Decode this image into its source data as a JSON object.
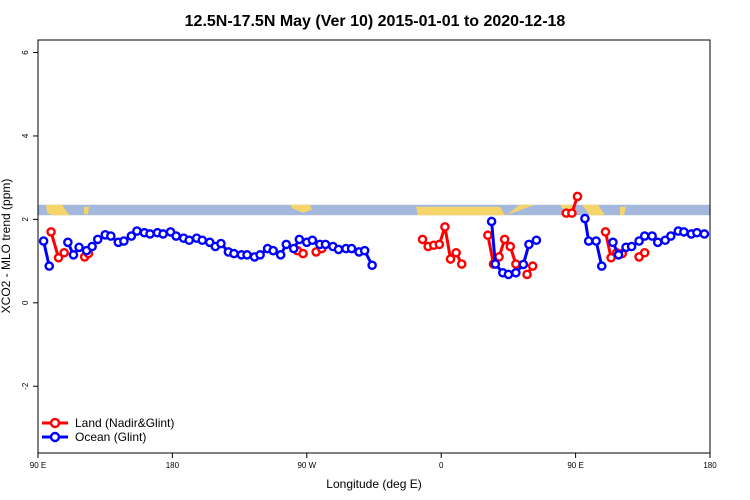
{
  "chart_data": {
    "type": "line",
    "title": "12.5N-17.5N May (Ver 10)   2015-01-01 to 2020-12-18",
    "xlabel": "Longitude (deg E)",
    "ylabel": "XCO2 - MLO trend (ppm)",
    "xlim": [
      90,
      450
    ],
    "ylim": [
      -3.6,
      6.3
    ],
    "x_ticks": [
      {
        "value": 90,
        "label": "90 E"
      },
      {
        "value": 162,
        "label": "180"
      },
      {
        "value": 234,
        "label": "90 W"
      },
      {
        "value": 306,
        "label": "0"
      },
      {
        "value": 378,
        "label": "90 E"
      },
      {
        "value": 450,
        "label": "180"
      }
    ],
    "y_ticks": [
      {
        "value": -2,
        "label": "-2"
      },
      {
        "value": 0,
        "label": "0"
      },
      {
        "value": 2,
        "label": "2"
      },
      {
        "value": 4,
        "label": "4"
      },
      {
        "value": 6,
        "label": "6"
      }
    ],
    "grid": false,
    "legend_position": "bottom-left",
    "land_band": {
      "y_low": 2.1,
      "y_high": 2.35,
      "ocean_color": "#a3b8dc",
      "land_color": "#f5d46a"
    },
    "series": [
      {
        "name": "Land (Nadir&Glint)",
        "color": "#ff0000",
        "segments": [
          [
            [
              97,
              1.7
            ],
            [
              101,
              1.08
            ],
            [
              104,
              1.2
            ]
          ],
          [
            [
              115,
              1.1
            ],
            [
              117,
              1.18
            ]
          ],
          [
            [
              229,
              1.25
            ],
            [
              232,
              1.18
            ]
          ],
          [
            [
              239,
              1.22
            ],
            [
              242,
              1.3
            ]
          ],
          [
            [
              296,
              1.52
            ],
            [
              299,
              1.35
            ],
            [
              302,
              1.38
            ],
            [
              305,
              1.4
            ],
            [
              308,
              1.82
            ],
            [
              311,
              1.05
            ],
            [
              314,
              1.2
            ],
            [
              317,
              0.93
            ]
          ],
          [
            [
              331,
              1.62
            ],
            [
              334,
              0.93
            ],
            [
              337,
              1.1
            ],
            [
              340,
              1.52
            ],
            [
              343,
              1.35
            ],
            [
              346,
              0.93
            ]
          ],
          [
            [
              352,
              0.68
            ],
            [
              355,
              0.88
            ]
          ],
          [
            [
              373,
              2.15
            ],
            [
              376,
              2.15
            ],
            [
              379,
              2.55
            ]
          ],
          [
            [
              394,
              1.7
            ],
            [
              397,
              1.08
            ],
            [
              400,
              1.2
            ],
            [
              403,
              1.18
            ]
          ],
          [
            [
              412,
              1.1
            ],
            [
              415,
              1.2
            ]
          ]
        ]
      },
      {
        "name": "Ocean (Glint)",
        "color": "#0000ff",
        "segments": [
          [
            [
              93,
              1.48
            ],
            [
              96,
              0.88
            ]
          ],
          [
            [
              106,
              1.45
            ],
            [
              109,
              1.15
            ],
            [
              112,
              1.33
            ],
            [
              116,
              1.25
            ],
            [
              119,
              1.35
            ],
            [
              122,
              1.52
            ],
            [
              126,
              1.63
            ],
            [
              129,
              1.6
            ],
            [
              133,
              1.45
            ],
            [
              136,
              1.48
            ],
            [
              140,
              1.6
            ],
            [
              143,
              1.72
            ],
            [
              147,
              1.68
            ],
            [
              150,
              1.65
            ],
            [
              154,
              1.68
            ],
            [
              157,
              1.65
            ],
            [
              161,
              1.7
            ],
            [
              164,
              1.6
            ],
            [
              168,
              1.55
            ],
            [
              171,
              1.5
            ],
            [
              175,
              1.55
            ],
            [
              178,
              1.5
            ],
            [
              182,
              1.45
            ],
            [
              185,
              1.35
            ],
            [
              188,
              1.42
            ],
            [
              192,
              1.22
            ],
            [
              195,
              1.18
            ],
            [
              199,
              1.15
            ],
            [
              202,
              1.15
            ],
            [
              206,
              1.1
            ],
            [
              209,
              1.15
            ],
            [
              213,
              1.3
            ],
            [
              216,
              1.25
            ],
            [
              220,
              1.15
            ],
            [
              223,
              1.4
            ],
            [
              227,
              1.3
            ],
            [
              230,
              1.52
            ],
            [
              234,
              1.45
            ],
            [
              237,
              1.5
            ],
            [
              241,
              1.4
            ],
            [
              244,
              1.4
            ],
            [
              248,
              1.35
            ],
            [
              251,
              1.28
            ],
            [
              255,
              1.3
            ],
            [
              258,
              1.3
            ],
            [
              262,
              1.22
            ],
            [
              265,
              1.25
            ],
            [
              269,
              0.9
            ]
          ],
          [
            [
              333,
              1.95
            ],
            [
              335,
              0.93
            ],
            [
              339,
              0.72
            ],
            [
              342,
              0.68
            ],
            [
              346,
              0.72
            ],
            [
              350,
              0.92
            ],
            [
              353,
              1.4
            ],
            [
              357,
              1.5
            ]
          ],
          [
            [
              383,
              2.02
            ],
            [
              385,
              1.48
            ],
            [
              389,
              1.48
            ],
            [
              392,
              0.88
            ]
          ],
          [
            [
              398,
              1.45
            ],
            [
              401,
              1.15
            ],
            [
              405,
              1.33
            ],
            [
              408,
              1.35
            ],
            [
              412,
              1.48
            ],
            [
              415,
              1.6
            ],
            [
              419,
              1.6
            ],
            [
              422,
              1.45
            ],
            [
              426,
              1.5
            ],
            [
              429,
              1.6
            ],
            [
              433,
              1.72
            ],
            [
              436,
              1.7
            ],
            [
              440,
              1.65
            ],
            [
              443,
              1.68
            ],
            [
              447,
              1.65
            ]
          ]
        ]
      }
    ]
  }
}
